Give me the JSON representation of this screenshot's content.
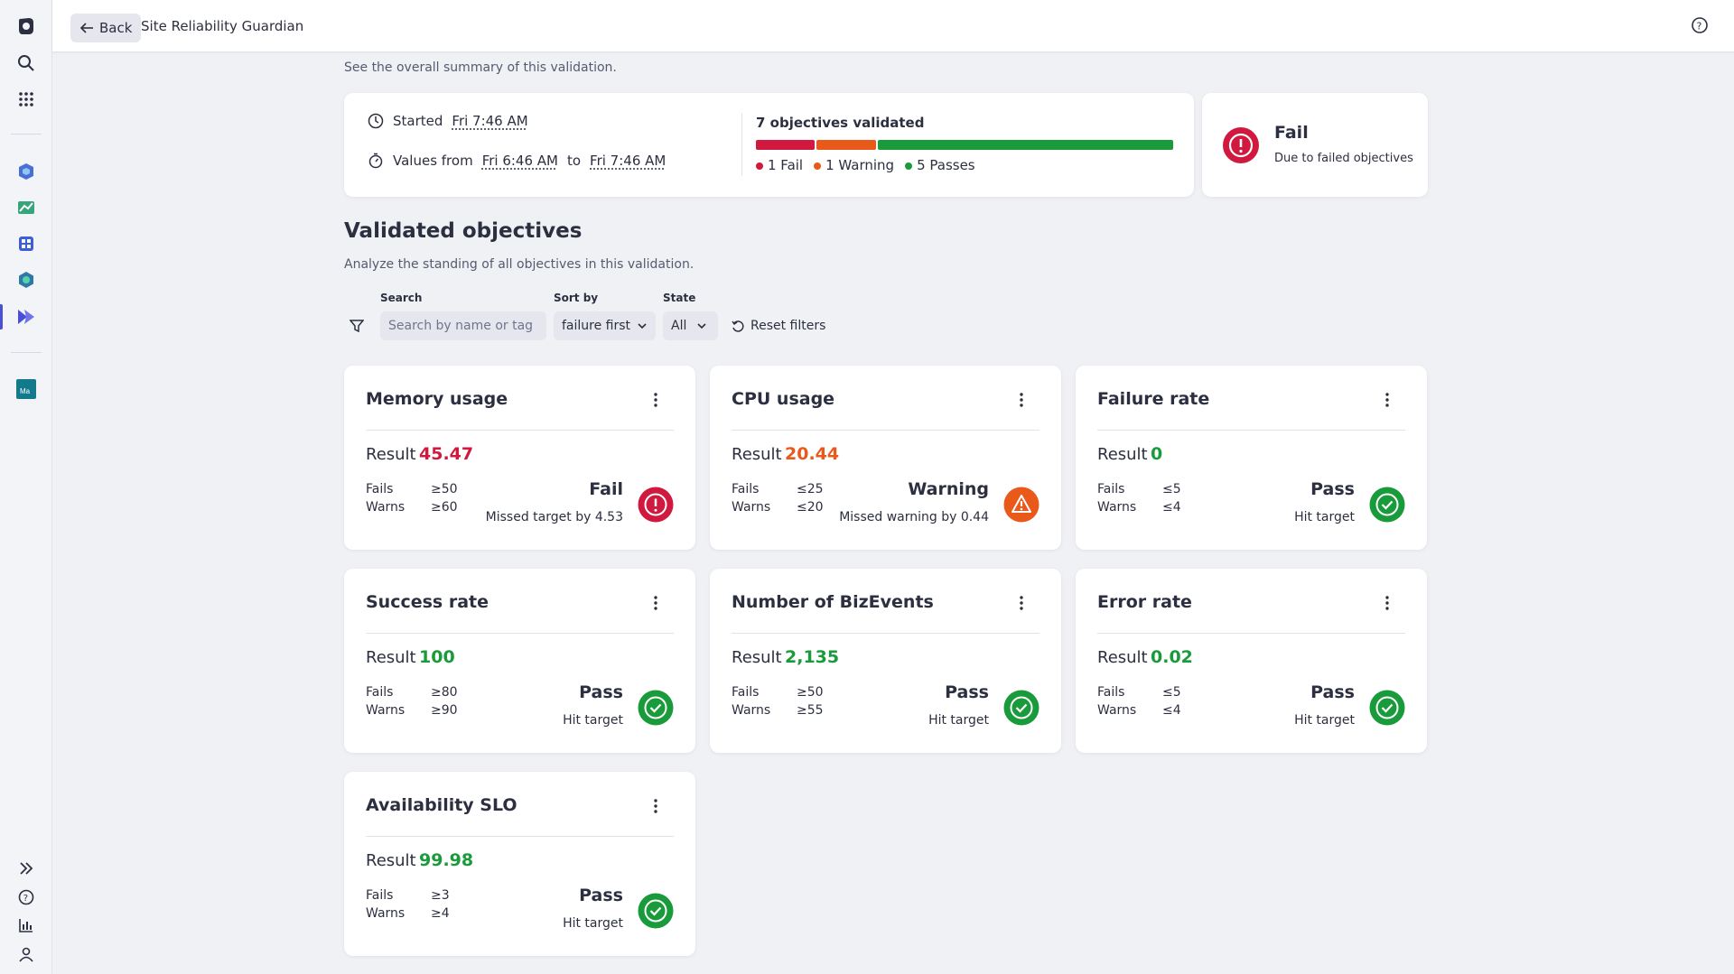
{
  "topbar": {
    "back_label": "Back",
    "app_title": "Site Reliability Guardian"
  },
  "summary": {
    "subtitle": "See the overall summary of this validation.",
    "started_label": "Started",
    "started_value": "Fri 7:46 AM",
    "values_from_label": "Values from",
    "values_from": "Fri 6:46 AM",
    "to_label": "to",
    "values_to": "Fri 7:46 AM",
    "objectives_title": "7 objectives validated",
    "counts": {
      "fail": 1,
      "warning": 1,
      "pass": 5
    },
    "legend": {
      "fail": "1 Fail",
      "warning": "1 Warning",
      "pass": "5 Passes"
    }
  },
  "status": {
    "title": "Fail",
    "subtitle": "Due to failed objectives"
  },
  "section": {
    "title": "Validated objectives",
    "subtitle": "Analyze the standing of all objectives in this validation."
  },
  "filters": {
    "search_label": "Search",
    "search_placeholder": "Search by name or tag",
    "sort_label": "Sort by",
    "sort_value": "failure first",
    "state_label": "State",
    "state_value": "All",
    "reset_label": "Reset filters"
  },
  "colors": {
    "fail": "#d1183e",
    "warning": "#e8591a",
    "pass": "#1a9b3b",
    "accent": "#4b4fd6"
  },
  "labels": {
    "result": "Result",
    "fails": "Fails",
    "warns": "Warns"
  },
  "objectives": [
    {
      "name": "Memory usage",
      "result": "45.47",
      "status": "fail",
      "fails": "≥50",
      "warns": "≥60",
      "verdict": "Fail",
      "note": "Missed target by 4.53"
    },
    {
      "name": "CPU usage",
      "result": "20.44",
      "status": "warning",
      "fails": "≤25",
      "warns": "≤20",
      "verdict": "Warning",
      "note": "Missed warning by 0.44"
    },
    {
      "name": "Failure rate",
      "result": "0",
      "status": "pass",
      "fails": "≤5",
      "warns": "≤4",
      "verdict": "Pass",
      "note": "Hit target"
    },
    {
      "name": "Success rate",
      "result": "100",
      "status": "pass",
      "fails": "≥80",
      "warns": "≥90",
      "verdict": "Pass",
      "note": "Hit target"
    },
    {
      "name": "Number of BizEvents",
      "result": "2,135",
      "status": "pass",
      "fails": "≥50",
      "warns": "≥55",
      "verdict": "Pass",
      "note": "Hit target"
    },
    {
      "name": "Error rate",
      "result": "0.02",
      "status": "pass",
      "fails": "≤5",
      "warns": "≤4",
      "verdict": "Pass",
      "note": "Hit target"
    },
    {
      "name": "Availability SLO",
      "result": "99.98",
      "status": "pass",
      "fails": "≥3",
      "warns": "≥4",
      "verdict": "Pass",
      "note": "Hit target"
    }
  ]
}
